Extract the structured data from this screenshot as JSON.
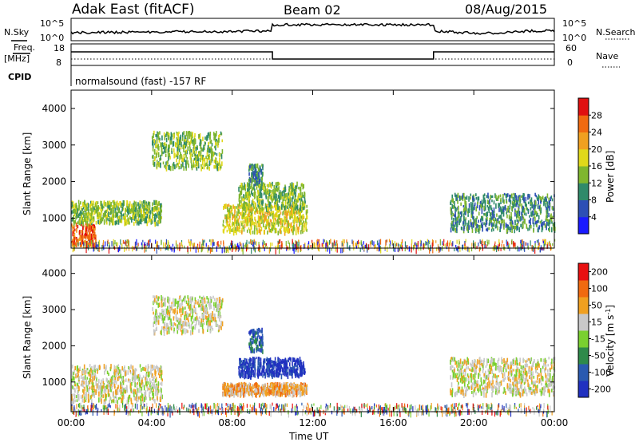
{
  "header": {
    "site": "Adak East (fitACF)",
    "beam": "Beam 02",
    "date": "08/Aug/2015"
  },
  "panels": {
    "nsky": {
      "left_label": "N.Sky",
      "right_label": "N.Search",
      "left_ticks": [
        "10^5",
        "10^0"
      ],
      "right_ticks": [
        "10^5",
        "10^0"
      ]
    },
    "freq": {
      "left_label": "Freq.",
      "left_unit": "[MHz]",
      "right_label": "Nave",
      "left_ticks": [
        "18",
        "8"
      ],
      "right_ticks": [
        "60",
        "0"
      ]
    },
    "cpid": {
      "label": "CPID",
      "text": "normalsound (fast) -157 RF"
    }
  },
  "chart_data": [
    {
      "type": "heatmap",
      "name": "power",
      "ylabel": "Slant Range [km]",
      "xlabel": "",
      "x_ticks": [
        "00:00",
        "04:00",
        "08:00",
        "12:00",
        "16:00",
        "20:00",
        "00:00"
      ],
      "y_ticks": [
        1000,
        2000,
        3000,
        4000
      ],
      "ylim": [
        180,
        4500
      ],
      "xlim_hours": [
        0,
        24
      ],
      "colorbar": {
        "label": "Power [dB]",
        "ticks": [
          4,
          8,
          12,
          16,
          20,
          24,
          28
        ],
        "range": [
          0,
          32
        ],
        "colors": [
          "#1a1aff",
          "#2d4fb5",
          "#2f8a6a",
          "#7fb62e",
          "#e0d81a",
          "#f0a020",
          "#f06a10",
          "#e01010"
        ]
      },
      "regions": [
        {
          "t": [
            0.0,
            1.2
          ],
          "r": [
            300,
            900
          ],
          "level": 6
        },
        {
          "t": [
            0.0,
            4.5
          ],
          "r": [
            900,
            1500
          ],
          "level": 3
        },
        {
          "t": [
            4.0,
            7.5
          ],
          "r": [
            2400,
            3400
          ],
          "level": 3
        },
        {
          "t": [
            7.5,
            11.7
          ],
          "r": [
            650,
            1400
          ],
          "level": 4
        },
        {
          "t": [
            8.3,
            11.6
          ],
          "r": [
            1300,
            2000
          ],
          "level": 3
        },
        {
          "t": [
            8.8,
            9.5
          ],
          "r": [
            2000,
            2500
          ],
          "level": 2
        },
        {
          "t": [
            18.8,
            24.0
          ],
          "r": [
            700,
            1700
          ],
          "level": 2
        }
      ]
    },
    {
      "type": "heatmap",
      "name": "velocity",
      "ylabel": "Slant Range [km]",
      "xlabel": "Time UT",
      "x_ticks": [
        "00:00",
        "04:00",
        "08:00",
        "12:00",
        "16:00",
        "20:00",
        "00:00"
      ],
      "y_ticks": [
        1000,
        2000,
        3000,
        4000
      ],
      "ylim": [
        180,
        4500
      ],
      "xlim_hours": [
        0,
        24
      ],
      "colorbar": {
        "label": "Velocity [m s^-1]",
        "ticks": [
          "200",
          "100",
          "50",
          "15",
          "-15",
          "-50",
          "-100",
          "-200"
        ],
        "colors": [
          "#2030c0",
          "#2a5ab0",
          "#2e8a4a",
          "#7ad030",
          "#c8c8c8",
          "#f0a020",
          "#f06a10",
          "#e81010"
        ]
      },
      "regions": [
        {
          "t": [
            0.0,
            4.5
          ],
          "r": [
            500,
            1500
          ],
          "level": 4
        },
        {
          "t": [
            4.0,
            7.5
          ],
          "r": [
            2400,
            3400
          ],
          "level": 4
        },
        {
          "t": [
            7.5,
            11.7
          ],
          "r": [
            700,
            1000
          ],
          "level": 5
        },
        {
          "t": [
            8.3,
            11.6
          ],
          "r": [
            1200,
            1700
          ],
          "level": 0
        },
        {
          "t": [
            8.8,
            9.5
          ],
          "r": [
            1900,
            2500
          ],
          "level": 1
        },
        {
          "t": [
            18.8,
            24.0
          ],
          "r": [
            700,
            1700
          ],
          "level": 4
        }
      ]
    }
  ]
}
